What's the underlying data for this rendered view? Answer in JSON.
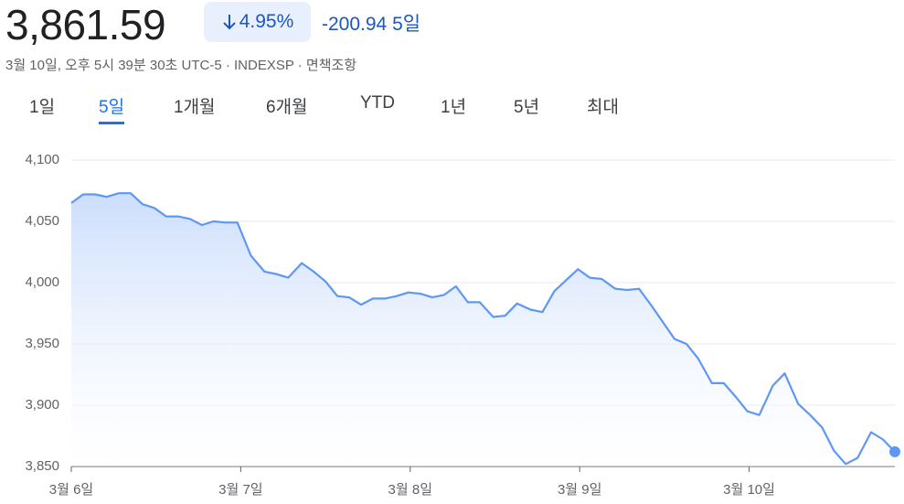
{
  "header": {
    "price": "3,861.59",
    "change_percent": "4.95%",
    "change": "-200.94",
    "period": "5일",
    "subtitle": "3월 10일, 오후 5시 39분 30초 UTC-5 · INDEXSP · 면책조항"
  },
  "tabs": {
    "items": [
      "1일",
      "5일",
      "1개월",
      "6개월",
      "YTD",
      "1년",
      "5년",
      "최대"
    ],
    "selected": 1
  },
  "chart_data": {
    "type": "line",
    "color": "#5e97f6",
    "grid": true,
    "x": [
      0,
      0.07,
      0.14,
      0.21,
      0.28,
      0.35,
      0.42,
      0.49,
      0.56,
      0.63,
      0.7,
      0.77,
      0.84,
      0.91,
      0.98,
      1.06,
      1.14,
      1.21,
      1.28,
      1.36,
      1.43,
      1.5,
      1.57,
      1.64,
      1.71,
      1.78,
      1.85,
      1.92,
      1.99,
      2.06,
      2.13,
      2.2,
      2.27,
      2.34,
      2.41,
      2.49,
      2.56,
      2.63,
      2.71,
      2.78,
      2.85,
      2.92,
      2.99,
      3.06,
      3.13,
      3.21,
      3.28,
      3.35,
      3.42,
      3.49,
      3.56,
      3.63,
      3.7,
      3.78,
      3.85,
      3.92,
      3.99,
      4.06,
      4.14,
      4.21,
      4.29,
      4.36,
      4.43,
      4.5,
      4.57,
      4.64,
      4.72,
      4.79,
      4.86
    ],
    "values": [
      4065,
      4072,
      4072,
      4070,
      4073,
      4073,
      4064,
      4061,
      4054,
      4054,
      4052,
      4047,
      4050,
      4049,
      4049,
      4022,
      4009,
      4007,
      4004,
      4016,
      4009,
      4001,
      3989,
      3988,
      3982,
      3987,
      3987,
      3989,
      3992,
      3991,
      3988,
      3990,
      3997,
      3984,
      3984,
      3972,
      3973,
      3983,
      3978,
      3976,
      3993,
      4002,
      4011,
      4004,
      4003,
      3995,
      3994,
      3995,
      3982,
      3968,
      3954,
      3950,
      3938,
      3918,
      3918,
      3907,
      3895,
      3892,
      3916,
      3926,
      3901,
      3892,
      3882,
      3863,
      3852,
      3857,
      3878,
      3872,
      3862
    ],
    "xlim": [
      0,
      4.86
    ],
    "xticks": [
      {
        "value": 0,
        "label": "3월 6일"
      },
      {
        "value": 1,
        "label": "3월 7일"
      },
      {
        "value": 2,
        "label": "3월 8일"
      },
      {
        "value": 3,
        "label": "3월 9일"
      },
      {
        "value": 4,
        "label": "3월 10일"
      }
    ],
    "ylim": [
      3850,
      4100
    ],
    "yticks": [
      {
        "value": 3850,
        "label": "3,850"
      },
      {
        "value": 3900,
        "label": "3,900"
      },
      {
        "value": 3950,
        "label": "3,950"
      },
      {
        "value": 4000,
        "label": "4,000"
      },
      {
        "value": 4050,
        "label": "4,050"
      },
      {
        "value": 4100,
        "label": "4,100"
      }
    ]
  }
}
